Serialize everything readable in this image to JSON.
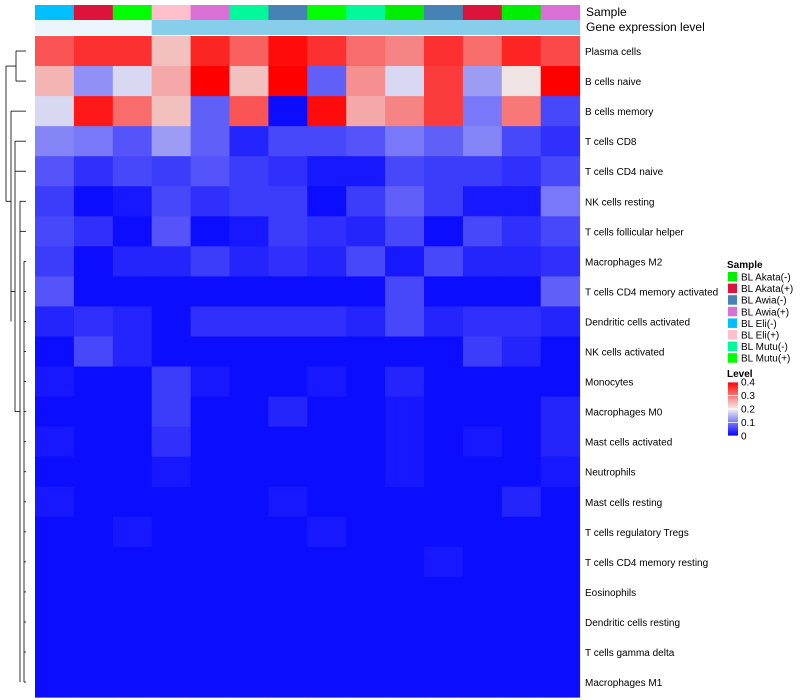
{
  "chart_data": {
    "type": "heatmap",
    "title": "",
    "annotation_rows": [
      "Sample",
      "Gene expression level"
    ],
    "columns": [
      {
        "sample": "BL Eli(-)",
        "sample_color": "#00BFFF",
        "level_color": "#EAF6FC"
      },
      {
        "sample": "BL Akata(+)",
        "sample_color": "#DC143C",
        "level_color": "#EAF6FC"
      },
      {
        "sample": "BL Mutu(+)",
        "sample_color": "#00FF00",
        "level_color": "#EAF6FC"
      },
      {
        "sample": "BL Eli(+)",
        "sample_color": "#FFC0CB",
        "level_color": "#87CEEB"
      },
      {
        "sample": "BL Awia(+)",
        "sample_color": "#DA70D6",
        "level_color": "#87CEEB"
      },
      {
        "sample": "BL Mutu(-)",
        "sample_color": "#00FA9A",
        "level_color": "#87CEEB"
      },
      {
        "sample": "BL Awia(-)",
        "sample_color": "#4682B4",
        "level_color": "#87CEEB"
      },
      {
        "sample": "BL Mutu(+)",
        "sample_color": "#00FF00",
        "level_color": "#87CEEB"
      },
      {
        "sample": "BL Mutu(-)",
        "sample_color": "#00FA9A",
        "level_color": "#87CEEB"
      },
      {
        "sample": "BL Akata(-)",
        "sample_color": "#00EE00",
        "level_color": "#87CEEB"
      },
      {
        "sample": "BL Awia(-)",
        "sample_color": "#4682B4",
        "level_color": "#87CEEB"
      },
      {
        "sample": "BL Akata(+)",
        "sample_color": "#DC143C",
        "level_color": "#87CEEB"
      },
      {
        "sample": "BL Akata(-)",
        "sample_color": "#00EE00",
        "level_color": "#87CEEB"
      },
      {
        "sample": "BL Awia(+)",
        "sample_color": "#DA70D6",
        "level_color": "#87CEEB"
      }
    ],
    "rows": [
      "Plasma cells",
      "B cells naive",
      "B cells memory",
      "T cells CD8",
      "T cells CD4 naive",
      "NK cells resting",
      "T cells follicular helper",
      "Macrophages M2",
      "T cells CD4 memory activated",
      "Dendritic cells activated",
      "NK cells activated",
      "Monocytes",
      "Macrophages M0",
      "Mast cells activated",
      "Neutrophils",
      "Mast cells resting",
      "T cells regulatory  Tregs",
      "T cells CD4 memory resting",
      "Eosinophils",
      "Dendritic cells resting",
      "T cells gamma delta",
      "Macrophages M1"
    ],
    "values": [
      [
        0.33,
        0.36,
        0.36,
        0.24,
        0.37,
        0.32,
        0.39,
        0.36,
        0.31,
        0.29,
        0.36,
        0.31,
        0.37,
        0.34
      ],
      [
        0.25,
        0.12,
        0.18,
        0.26,
        0.4,
        0.24,
        0.4,
        0.08,
        0.28,
        0.18,
        0.35,
        0.13,
        0.21,
        0.4
      ],
      [
        0.18,
        0.38,
        0.31,
        0.24,
        0.08,
        0.33,
        0.01,
        0.39,
        0.26,
        0.29,
        0.35,
        0.1,
        0.3,
        0.06
      ],
      [
        0.11,
        0.1,
        0.07,
        0.13,
        0.08,
        0.03,
        0.06,
        0.06,
        0.07,
        0.1,
        0.08,
        0.11,
        0.06,
        0.04
      ],
      [
        0.07,
        0.04,
        0.06,
        0.05,
        0.07,
        0.05,
        0.04,
        0.02,
        0.02,
        0.06,
        0.05,
        0.05,
        0.04,
        0.06
      ],
      [
        0.05,
        0.01,
        0.02,
        0.06,
        0.04,
        0.05,
        0.05,
        0.01,
        0.05,
        0.08,
        0.05,
        0.02,
        0.02,
        0.1
      ],
      [
        0.06,
        0.04,
        0.01,
        0.07,
        0.01,
        0.02,
        0.05,
        0.04,
        0.03,
        0.06,
        0.01,
        0.06,
        0.04,
        0.06
      ],
      [
        0.05,
        0.01,
        0.03,
        0.03,
        0.05,
        0.03,
        0.04,
        0.03,
        0.06,
        0.02,
        0.06,
        0.03,
        0.03,
        0.04
      ],
      [
        0.07,
        0.01,
        0.01,
        0.01,
        0.01,
        0.01,
        0.01,
        0.01,
        0.01,
        0.06,
        0.01,
        0.01,
        0.01,
        0.08
      ],
      [
        0.03,
        0.04,
        0.03,
        0.01,
        0.04,
        0.04,
        0.04,
        0.04,
        0.03,
        0.06,
        0.03,
        0.04,
        0.04,
        0.03
      ],
      [
        0.01,
        0.06,
        0.03,
        0.01,
        0.01,
        0.01,
        0.01,
        0.01,
        0.01,
        0.01,
        0.01,
        0.05,
        0.03,
        0.01
      ],
      [
        0.02,
        0.01,
        0.01,
        0.05,
        0.02,
        0.01,
        0.01,
        0.02,
        0.01,
        0.03,
        0.01,
        0.01,
        0.01,
        0.01
      ],
      [
        0.01,
        0.01,
        0.01,
        0.05,
        0.01,
        0.01,
        0.03,
        0.01,
        0.01,
        0.02,
        0.01,
        0.01,
        0.01,
        0.03
      ],
      [
        0.02,
        0.01,
        0.01,
        0.04,
        0.01,
        0.01,
        0.01,
        0.01,
        0.01,
        0.02,
        0.01,
        0.02,
        0.01,
        0.03
      ],
      [
        0.01,
        0.01,
        0.01,
        0.02,
        0.01,
        0.01,
        0.01,
        0.01,
        0.01,
        0.02,
        0.01,
        0.01,
        0.01,
        0.02
      ],
      [
        0.02,
        0.01,
        0.01,
        0.01,
        0.01,
        0.01,
        0.02,
        0.01,
        0.01,
        0.01,
        0.01,
        0.01,
        0.03,
        0.01
      ],
      [
        0.01,
        0.01,
        0.02,
        0.01,
        0.01,
        0.01,
        0.01,
        0.02,
        0.01,
        0.01,
        0.01,
        0.01,
        0.01,
        0.01
      ],
      [
        0.01,
        0.01,
        0.01,
        0.01,
        0.01,
        0.01,
        0.01,
        0.01,
        0.01,
        0.01,
        0.02,
        0.01,
        0.01,
        0.01
      ],
      [
        0.01,
        0.01,
        0.01,
        0.01,
        0.01,
        0.01,
        0.01,
        0.01,
        0.01,
        0.01,
        0.01,
        0.01,
        0.01,
        0.01
      ],
      [
        0.01,
        0.01,
        0.01,
        0.01,
        0.01,
        0.01,
        0.01,
        0.01,
        0.01,
        0.01,
        0.01,
        0.01,
        0.01,
        0.01
      ],
      [
        0.01,
        0.01,
        0.01,
        0.01,
        0.01,
        0.01,
        0.01,
        0.01,
        0.01,
        0.01,
        0.01,
        0.01,
        0.01,
        0.01
      ],
      [
        0.01,
        0.01,
        0.01,
        0.01,
        0.01,
        0.01,
        0.01,
        0.01,
        0.01,
        0.01,
        0.01,
        0.01,
        0.01,
        0.01
      ]
    ],
    "color_scale": {
      "range": [
        0,
        0.4
      ],
      "stops": [
        {
          "value": 0.0,
          "color": "#0000FF"
        },
        {
          "value": 0.2,
          "color": "#F0F0F0"
        },
        {
          "value": 0.4,
          "color": "#FF0000"
        }
      ]
    },
    "legend_sample": {
      "title": "Sample",
      "entries": [
        {
          "label": "BL Akata(-)",
          "color": "#00EE00"
        },
        {
          "label": "BL Akata(+)",
          "color": "#DC143C"
        },
        {
          "label": "BL Awia(-)",
          "color": "#4682B4"
        },
        {
          "label": "BL Awia(+)",
          "color": "#DA70D6"
        },
        {
          "label": "BL Eli(-)",
          "color": "#00BFFF"
        },
        {
          "label": "BL Eli(+)",
          "color": "#FFC0CB"
        },
        {
          "label": "BL Mutu(-)",
          "color": "#00FA9A"
        },
        {
          "label": "BL Mutu(+)",
          "color": "#00FF00"
        }
      ]
    },
    "legend_level": {
      "title": "Level",
      "ticks": [
        "0.4",
        "0.3",
        "0.2",
        "0.1",
        "0"
      ],
      "tick_values": [
        0.4,
        0.3,
        0.2,
        0.1,
        0
      ]
    },
    "dendrogram_color": "#000000"
  }
}
